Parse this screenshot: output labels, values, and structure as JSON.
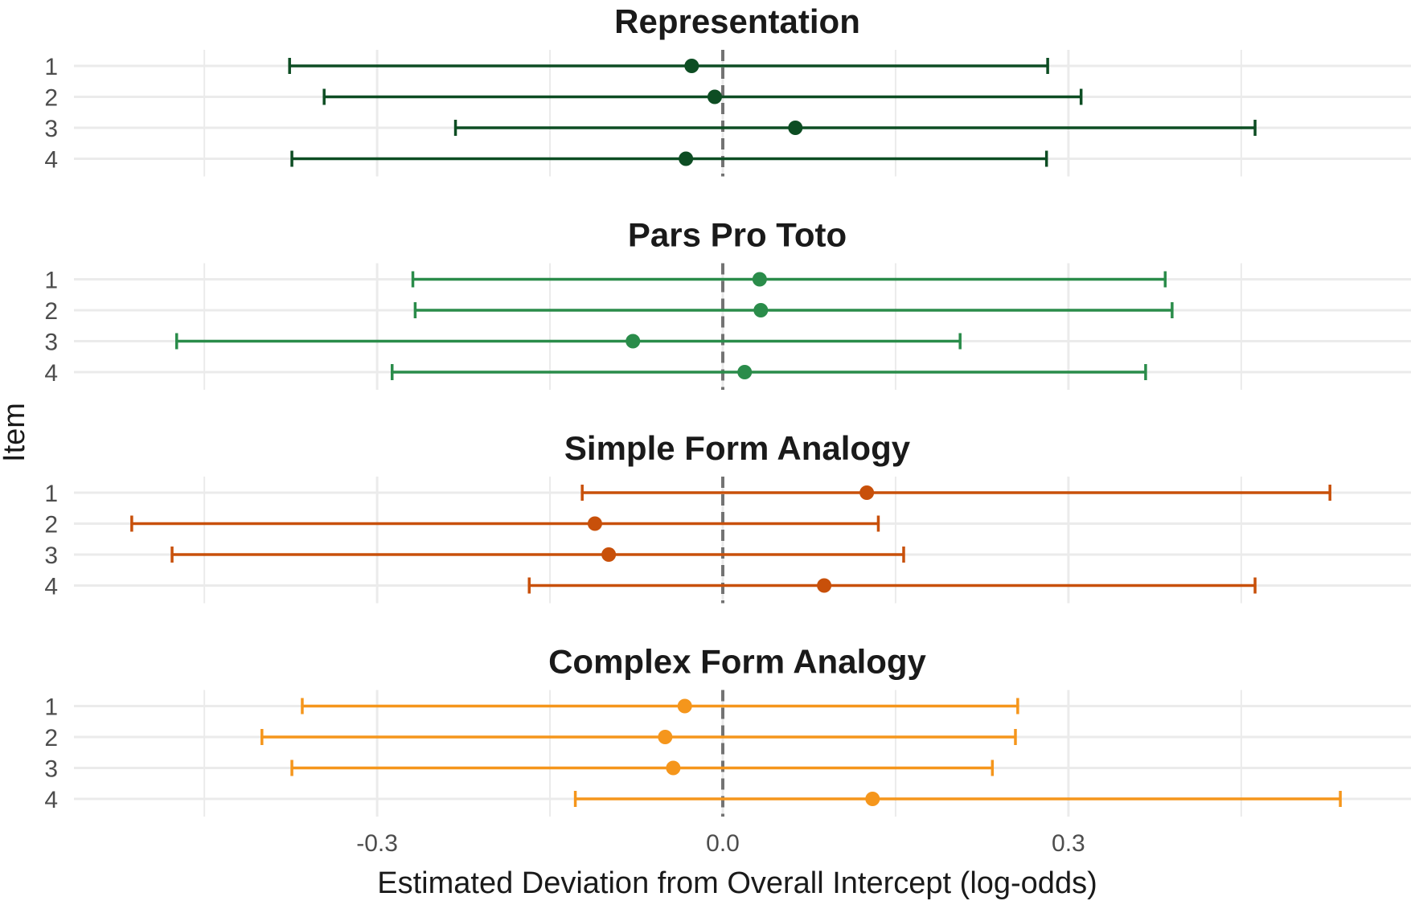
{
  "chart_data": {
    "type": "errorbar",
    "xlabel": "Estimated Deviation from Overall Intercept (log-odds)",
    "ylabel": "Item",
    "x_ticks": [
      -0.3,
      0.0,
      0.3
    ],
    "x_tick_labels": [
      "-0.3",
      "0.0",
      "0.3"
    ],
    "xlim": [
      -0.55,
      0.59
    ],
    "reference_line": 0,
    "grid": true,
    "facets": [
      {
        "title": "Representation",
        "color": "#0d4d23",
        "items": [
          {
            "label": "1",
            "estimate": -0.027,
            "lower": -0.376,
            "upper": 0.282
          },
          {
            "label": "2",
            "estimate": -0.007,
            "lower": -0.346,
            "upper": 0.311
          },
          {
            "label": "3",
            "estimate": 0.063,
            "lower": -0.232,
            "upper": 0.462
          },
          {
            "label": "4",
            "estimate": -0.032,
            "lower": -0.374,
            "upper": 0.281
          }
        ]
      },
      {
        "title": "Pars Pro Toto",
        "color": "#2a8c4a",
        "items": [
          {
            "label": "1",
            "estimate": 0.032,
            "lower": -0.269,
            "upper": 0.384
          },
          {
            "label": "2",
            "estimate": 0.033,
            "lower": -0.267,
            "upper": 0.39
          },
          {
            "label": "3",
            "estimate": -0.078,
            "lower": -0.474,
            "upper": 0.206
          },
          {
            "label": "4",
            "estimate": 0.019,
            "lower": -0.287,
            "upper": 0.367
          }
        ]
      },
      {
        "title": "Simple Form Analogy",
        "color": "#c8500a",
        "items": [
          {
            "label": "1",
            "estimate": 0.125,
            "lower": -0.122,
            "upper": 0.527
          },
          {
            "label": "2",
            "estimate": -0.111,
            "lower": -0.513,
            "upper": 0.135
          },
          {
            "label": "3",
            "estimate": -0.099,
            "lower": -0.478,
            "upper": 0.157
          },
          {
            "label": "4",
            "estimate": 0.088,
            "lower": -0.168,
            "upper": 0.462
          }
        ]
      },
      {
        "title": "Complex Form Analogy",
        "color": "#f5961c",
        "items": [
          {
            "label": "1",
            "estimate": -0.033,
            "lower": -0.365,
            "upper": 0.256
          },
          {
            "label": "2",
            "estimate": -0.05,
            "lower": -0.4,
            "upper": 0.254
          },
          {
            "label": "3",
            "estimate": -0.043,
            "lower": -0.374,
            "upper": 0.234
          },
          {
            "label": "4",
            "estimate": 0.13,
            "lower": -0.128,
            "upper": 0.536
          }
        ]
      }
    ]
  }
}
